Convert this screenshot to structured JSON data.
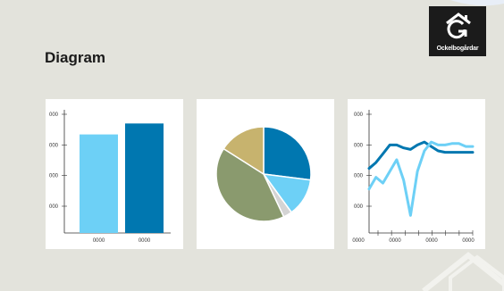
{
  "slide": {
    "title": "Diagram",
    "logo_text": "Ockelbogårdar",
    "logo_icon": "house-g-icon"
  },
  "colors": {
    "background": "#e3e3dc",
    "light_blue": "#6dd0f6",
    "dark_blue": "#0077b0",
    "olive": "#8a9a6e",
    "khaki": "#c7b36e",
    "light_gray": "#d4d4d4"
  },
  "chart_data": [
    {
      "type": "bar",
      "categories": [
        "0000",
        "0000"
      ],
      "values": [
        3.6,
        4.0
      ],
      "ytick_labels": [
        "000",
        "000",
        "000",
        "000"
      ],
      "ylim": [
        0,
        4.5
      ],
      "grid": false
    },
    {
      "type": "pie",
      "values": [
        27,
        13,
        3,
        41,
        16
      ]
    },
    {
      "type": "line",
      "x": [
        0,
        1,
        2,
        3,
        4,
        5,
        6,
        7,
        8,
        9,
        10,
        11,
        12,
        13,
        14,
        15
      ],
      "xtick_labels": [
        "0000",
        "0000",
        "0000",
        "0000"
      ],
      "ytick_labels": [
        "000",
        "000",
        "000",
        "000"
      ],
      "ylim": [
        0,
        4.2
      ],
      "series": [
        {
          "values": [
            2.2,
            2.4,
            2.7,
            3.0,
            3.0,
            2.9,
            2.85,
            3.0,
            3.1,
            2.95,
            2.8,
            2.75,
            2.75,
            2.75,
            2.75,
            2.75
          ]
        },
        {
          "values": [
            1.5,
            1.9,
            1.7,
            2.1,
            2.5,
            1.8,
            0.6,
            2.1,
            2.8,
            3.1,
            3.0,
            3.0,
            3.05,
            3.05,
            2.95,
            2.95
          ]
        }
      ],
      "grid": false
    }
  ]
}
